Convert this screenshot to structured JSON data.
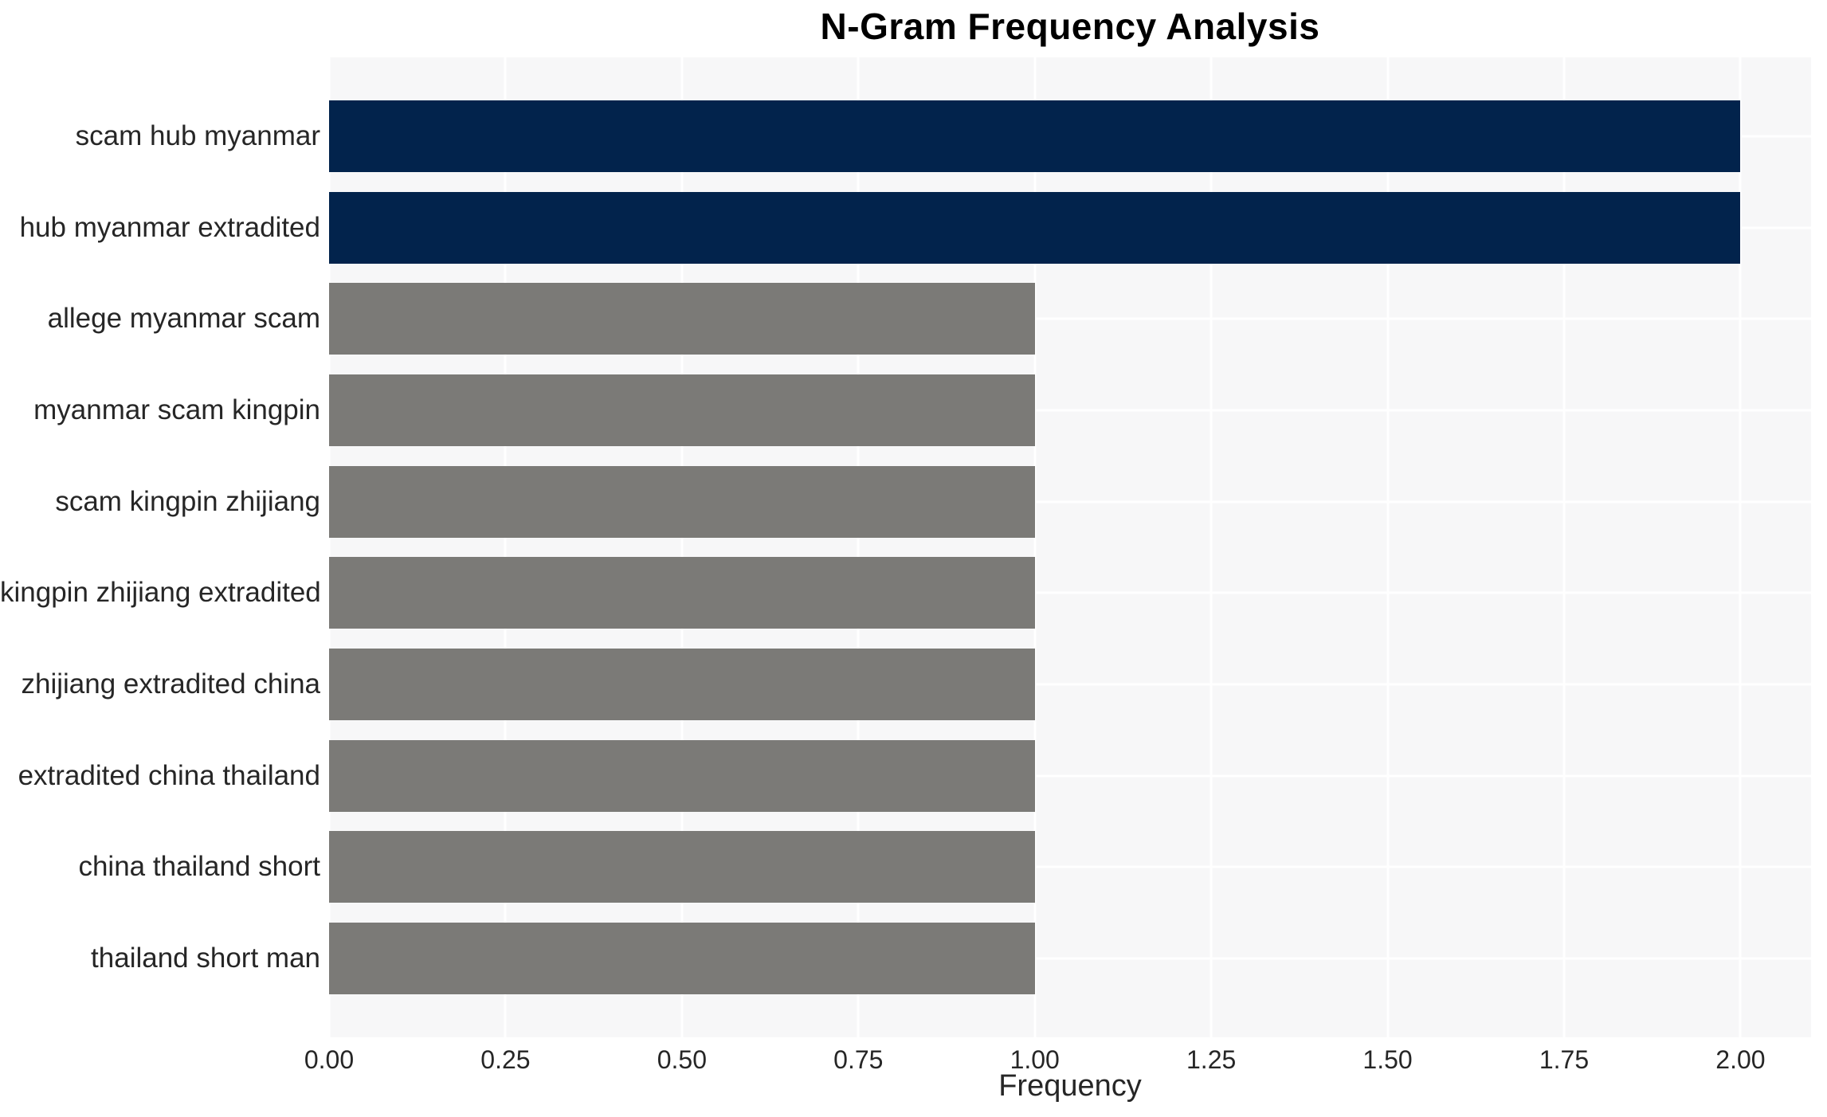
{
  "chart_data": {
    "type": "bar",
    "orientation": "horizontal",
    "title": "N-Gram Frequency Analysis",
    "xlabel": "Frequency",
    "ylabel": "",
    "categories": [
      "scam hub myanmar",
      "hub myanmar extradited",
      "allege myanmar scam",
      "myanmar scam kingpin",
      "scam kingpin zhijiang",
      "kingpin zhijiang extradited",
      "zhijiang extradited china",
      "extradited china thailand",
      "china thailand short",
      "thailand short man"
    ],
    "values": [
      2.0,
      2.0,
      1.0,
      1.0,
      1.0,
      1.0,
      1.0,
      1.0,
      1.0,
      1.0
    ],
    "bar_colors": [
      "#02234c",
      "#02234c",
      "#7b7a77",
      "#7b7a77",
      "#7b7a77",
      "#7b7a77",
      "#7b7a77",
      "#7b7a77",
      "#7b7a77",
      "#7b7a77"
    ],
    "xticks": [
      0.0,
      0.25,
      0.5,
      0.75,
      1.0,
      1.25,
      1.5,
      1.75,
      2.0
    ],
    "xtick_labels": [
      "0.00",
      "0.25",
      "0.50",
      "0.75",
      "1.00",
      "1.25",
      "1.50",
      "1.75",
      "2.00"
    ],
    "xlim": [
      0,
      2.1
    ],
    "grid": true,
    "legend": false,
    "colors": {
      "highlight_bar": "#02234c",
      "default_bar": "#7b7a77",
      "plot_background": "#f7f7f8",
      "gridline": "#ffffff",
      "text": "#262626",
      "title_text": "#000000"
    }
  }
}
